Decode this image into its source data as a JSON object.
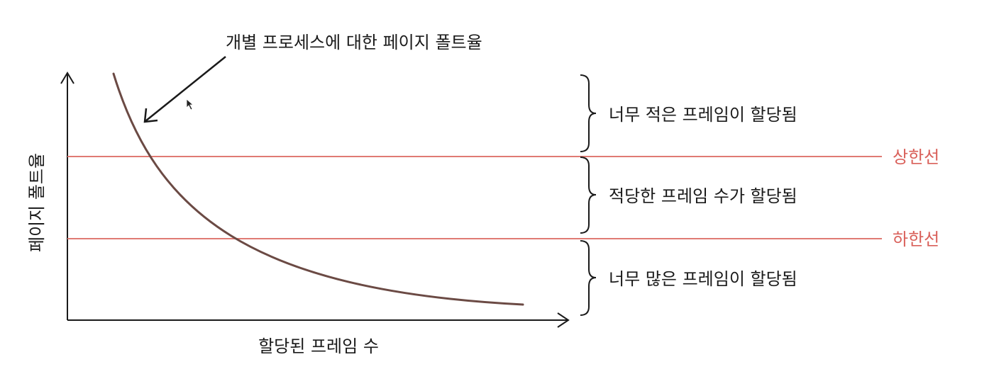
{
  "diagram": {
    "curve_label": "개별 프로세스에 대한 페이지 폴트율",
    "y_axis_label": "페이지 폴트율",
    "x_axis_label": "할당된 프레임 수",
    "upper_line_label": "상한선",
    "lower_line_label": "하한선",
    "regions": [
      {
        "label": "너무 적은 프레임이 할당됨"
      },
      {
        "label": "적당한 프레임 수가 할당됨"
      },
      {
        "label": "너무 많은 프레임이 할당됨"
      }
    ],
    "colors": {
      "curve": "#6b4a44",
      "threshold_lines": "#e07a73",
      "threshold_text": "#d9605a",
      "ink": "#1a1a1a"
    }
  }
}
